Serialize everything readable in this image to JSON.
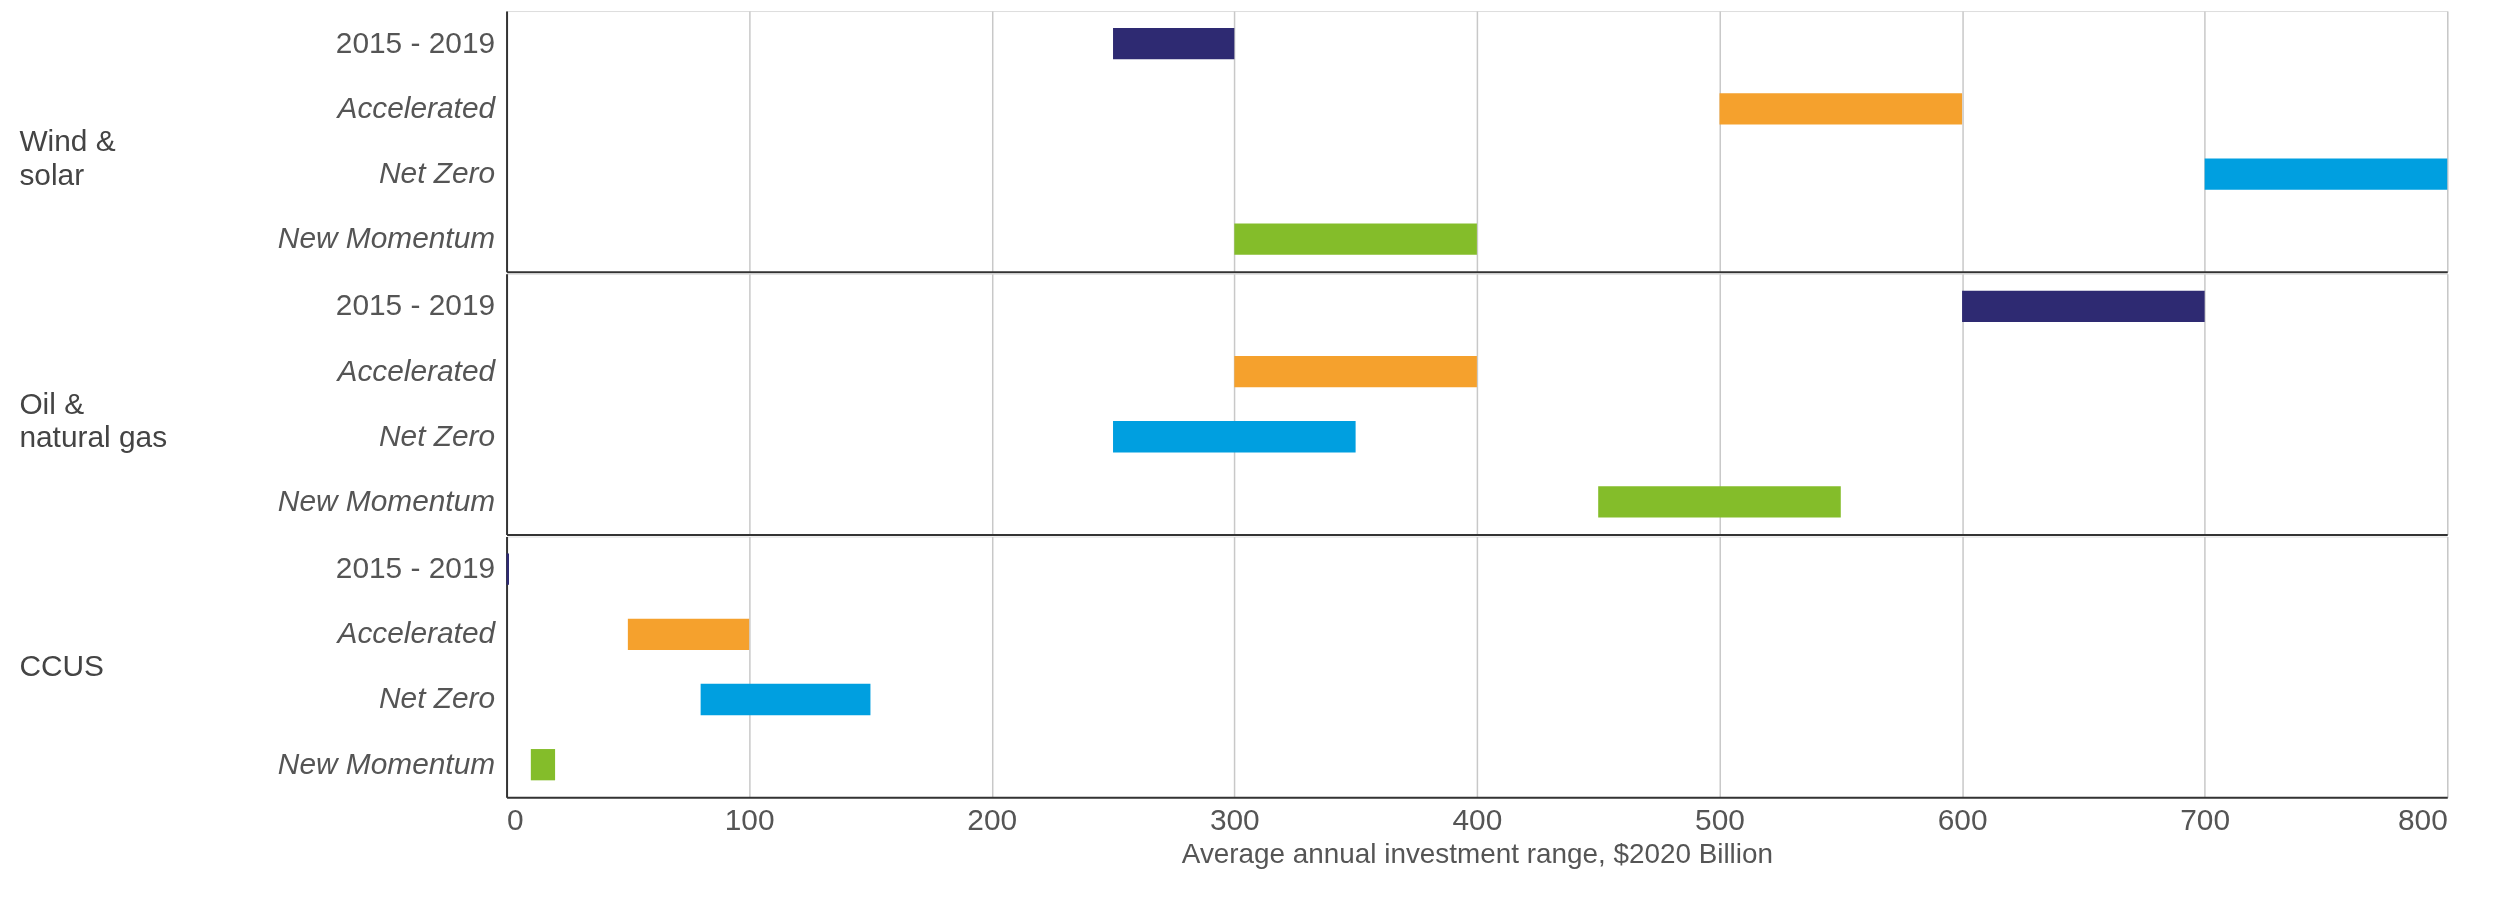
{
  "chart_data": [
    {
      "type": "bar",
      "orientation": "horizontal",
      "ylabel": "Wind &\nsolar",
      "categories": [
        "2015 - 2019",
        "Accelerated",
        "Net Zero",
        "New Momentum"
      ],
      "base": [
        250,
        500,
        700,
        300
      ],
      "values": [
        50,
        100,
        100,
        100
      ],
      "colors": [
        "#2e2a72",
        "#f5a12d",
        "#009fe0",
        "#84bd2a"
      ],
      "xlim": [
        0,
        800
      ],
      "xticks": [
        0,
        100,
        200,
        300,
        400,
        500,
        600,
        700,
        800
      ],
      "grid": "x",
      "tick_labels": "y"
    },
    {
      "type": "bar",
      "orientation": "horizontal",
      "ylabel": "Oil &\nnatural gas",
      "categories": [
        "2015 - 2019",
        "Accelerated",
        "Net Zero",
        "New Momentum"
      ],
      "base": [
        600,
        300,
        250,
        450
      ],
      "values": [
        100,
        100,
        100,
        100
      ],
      "colors": [
        "#2e2a72",
        "#f5a12d",
        "#009fe0",
        "#84bd2a"
      ],
      "xlim": [
        0,
        800
      ],
      "xticks": [
        0,
        100,
        200,
        300,
        400,
        500,
        600,
        700,
        800
      ],
      "grid": "x",
      "tick_labels": "y"
    },
    {
      "type": "bar",
      "orientation": "horizontal",
      "ylabel": "CCUS",
      "xlabel": "Average annual investment range, $2020 Billion",
      "categories": [
        "2015 - 2019",
        "Accelerated",
        "Net Zero",
        "New Momentum"
      ],
      "base": [
        0,
        50,
        80,
        10
      ],
      "values": [
        1,
        50,
        70,
        10
      ],
      "colors": [
        "#2e2a72",
        "#f5a12d",
        "#009fe0",
        "#84bd2a"
      ],
      "xlim": [
        0,
        800
      ],
      "xticks": [
        0,
        100,
        200,
        300,
        400,
        500,
        600,
        700,
        800
      ],
      "grid": "x"
    }
  ]
}
